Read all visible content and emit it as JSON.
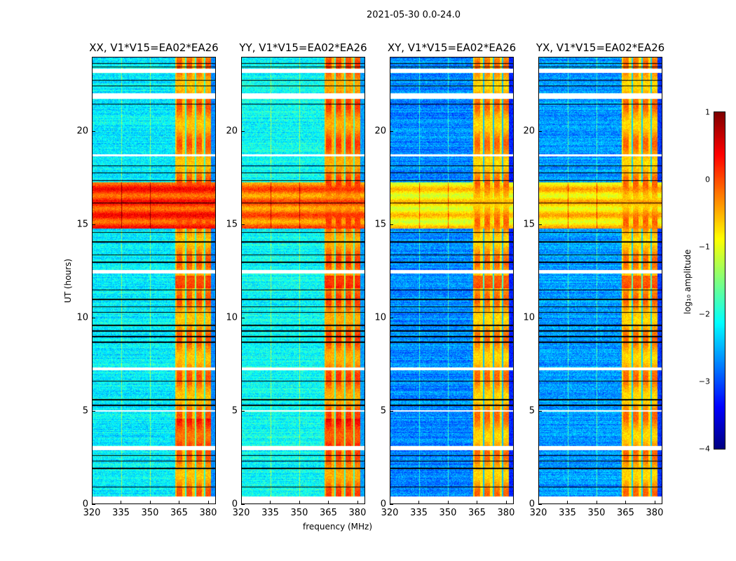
{
  "chart_data": {
    "type": "heatmap",
    "title": "2021-05-30 0.0-24.0",
    "xlabel": "frequency (MHz)",
    "ylabel": "UT (hours)",
    "xlim": [
      320,
      384
    ],
    "ylim": [
      0,
      24
    ],
    "xticks": [
      "320",
      "335",
      "350",
      "365",
      "380"
    ],
    "yticks": [
      "0",
      "5",
      "10",
      "15",
      "20"
    ],
    "panels": [
      {
        "title": "XX, V1*V15=EA02*EA26",
        "base": -2.2,
        "storm": 0.1,
        "band": -0.6
      },
      {
        "title": "YY, V1*V15=EA02*EA26",
        "base": -2.1,
        "storm": -0.2,
        "band": -0.5
      },
      {
        "title": "XY, V1*V15=EA02*EA26",
        "base": -2.7,
        "storm": -0.8,
        "band": -0.7
      },
      {
        "title": "YX, V1*V15=EA02*EA26",
        "base": -2.6,
        "storm": -0.7,
        "band": -0.7
      }
    ],
    "band_mhz": [
      363,
      382
    ],
    "storm_hours": [
      14.8,
      17.3
    ],
    "flagged_hours": [
      [
        0,
        0.4
      ],
      [
        2.9,
        3.1
      ],
      [
        4.95,
        5.05
      ],
      [
        7.2,
        7.35
      ],
      [
        12.4,
        12.6
      ],
      [
        21.8,
        22.1
      ],
      [
        18.7,
        18.8
      ],
      [
        23.2,
        23.4
      ]
    ],
    "colorbar": {
      "label": "log₁₀ amplitude",
      "range": [
        -4,
        1
      ],
      "ticks": [
        "−4",
        "−3",
        "−2",
        "−1",
        "0",
        "1"
      ],
      "colormap": "jet"
    }
  }
}
